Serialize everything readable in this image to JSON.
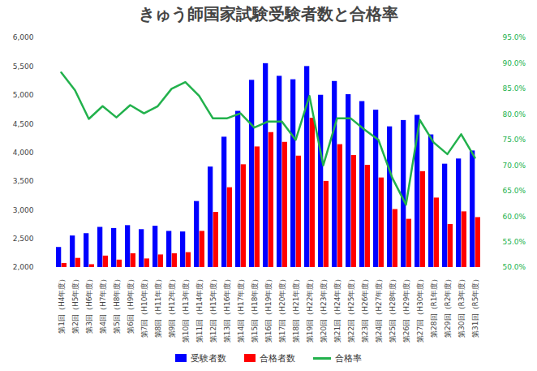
{
  "chart_data": {
    "type": "bar",
    "title": "きゅう師国家試験受験者数と合格率",
    "categories": [
      "第1回（H4年度）",
      "第2回（H5年度）",
      "第3回（H6年度）",
      "第4回（H7年度）",
      "第5回（H8年度）",
      "第6回（H9年度）",
      "第7回（H10年度）",
      "第8回（H11年度）",
      "第9回（H12年度）",
      "第10回（H13年度）",
      "第11回（H14年度）",
      "第12回（H15年度）",
      "第13回（H16年度）",
      "第14回（H17年度）",
      "第15回（H18年度）",
      "第16回（H19年度）",
      "第17回（H20年度）",
      "第18回（H21年度）",
      "第19回（H22年度）",
      "第20回（H23年度）",
      "第21回（H24年度）",
      "第22回（H25年度）",
      "第23回（H26年度）",
      "第24回（H27年度）",
      "第25回（H28年度）",
      "第26回（H29年度）",
      "第27回（H30年度）",
      "第28回（R1年度）",
      "第29回（R2年度）",
      "第30回（R3年度）",
      "第31回（R5年度）"
    ],
    "series": [
      {
        "name": "受験者数",
        "type": "bar",
        "color": "#0000ff",
        "values": [
          2350,
          2550,
          2590,
          2700,
          2680,
          2730,
          2660,
          2720,
          2630,
          2620,
          3150,
          3750,
          4270,
          4720,
          5260,
          5550,
          5330,
          5270,
          5500,
          5000,
          5240,
          5010,
          4890,
          4740,
          4450,
          4560,
          4650,
          4310,
          3800,
          3890,
          4030
        ]
      },
      {
        "name": "合格者数",
        "type": "bar",
        "color": "#ff0000",
        "values": [
          2070,
          2160,
          2050,
          2200,
          2130,
          2240,
          2150,
          2220,
          2240,
          2260,
          2630,
          2960,
          3390,
          3790,
          4100,
          4350,
          4180,
          3940,
          4600,
          3500,
          4140,
          3950,
          3780,
          3560,
          3010,
          2840,
          3670,
          3210,
          2750,
          2970,
          2870
        ]
      },
      {
        "name": "合格率",
        "type": "line",
        "axis": "y2",
        "color": "#22b14c",
        "values": [
          88.2,
          84.7,
          79.1,
          81.6,
          79.4,
          81.8,
          80.2,
          81.6,
          85.0,
          86.3,
          83.6,
          79.2,
          79.2,
          80.2,
          77.4,
          78.6,
          78.6,
          75.0,
          83.6,
          70.0,
          79.2,
          79.2,
          77.0,
          75.0,
          67.6,
          62.3,
          78.9,
          74.5,
          72.2,
          76.1,
          71.5
        ]
      }
    ],
    "ylim": [
      2000,
      6000
    ],
    "yticks": [
      {
        "value": 2000,
        "label": "2,000"
      },
      {
        "value": 2500,
        "label": "2,500"
      },
      {
        "value": 3000,
        "label": "3,000"
      },
      {
        "value": 3500,
        "label": "3,500"
      },
      {
        "value": 4000,
        "label": "4,000"
      },
      {
        "value": 4500,
        "label": "4,500"
      },
      {
        "value": 5000,
        "label": "5,000"
      },
      {
        "value": 5500,
        "label": "5,500"
      },
      {
        "value": 6000,
        "label": "6,000"
      }
    ],
    "y2lim": [
      50,
      95
    ],
    "y2ticks": [
      {
        "value": 50,
        "label": "50.0%"
      },
      {
        "value": 55,
        "label": "55.0%"
      },
      {
        "value": 60,
        "label": "60.0%"
      },
      {
        "value": 65,
        "label": "65.0%"
      },
      {
        "value": 70,
        "label": "70.0%"
      },
      {
        "value": 75,
        "label": "75.0%"
      },
      {
        "value": 80,
        "label": "80.0%"
      },
      {
        "value": 85,
        "label": "85.0%"
      },
      {
        "value": 90,
        "label": "90.0%"
      },
      {
        "value": 95,
        "label": "95.0%"
      }
    ],
    "grid": false,
    "legend": "bottom"
  }
}
